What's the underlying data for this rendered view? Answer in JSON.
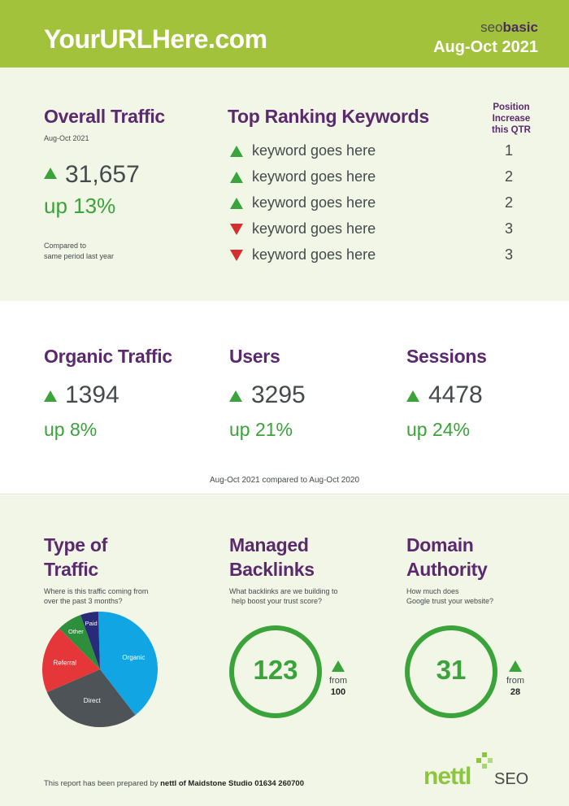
{
  "header": {
    "site_title": "YourURLHere.com",
    "brand_prefix": "seo",
    "brand_bold": "basic",
    "period": "Aug-Oct 2021"
  },
  "overall_traffic": {
    "title": "Overall Traffic",
    "date": "Aug-Oct 2021",
    "value": "31,657",
    "change": "up 13%",
    "note_line1": "Compared to",
    "note_line2": "same period last year"
  },
  "keywords": {
    "title": "Top Ranking Keywords",
    "position_header_line1": "Position",
    "position_header_line2": "Increase",
    "position_header_line3": "this QTR",
    "items": [
      {
        "text": "keyword goes here",
        "direction": "up",
        "position": "1"
      },
      {
        "text": "keyword goes here",
        "direction": "up",
        "position": "2"
      },
      {
        "text": "keyword goes here",
        "direction": "up",
        "position": "2"
      },
      {
        "text": "keyword goes here",
        "direction": "down",
        "position": "3"
      },
      {
        "text": "keyword goes here",
        "direction": "down",
        "position": "3"
      }
    ]
  },
  "metrics": {
    "organic": {
      "title": "Organic Traffic",
      "value": "1394",
      "change": "up 8%"
    },
    "users": {
      "title": "Users",
      "value": "3295",
      "change": "up 21%"
    },
    "sessions": {
      "title": "Sessions",
      "value": "4478",
      "change": "up 24%"
    },
    "comparison_note": "Aug-Oct 2021 compared to Aug-Oct 2020"
  },
  "type_of_traffic": {
    "title_line1": "Type of",
    "title_line2": "Traffic",
    "desc_line1": "Where is this traffic coming from",
    "desc_line2": "over the past 3 months?"
  },
  "backlinks": {
    "title_line1": "Managed",
    "title_line2": "Backlinks",
    "desc_line1": "What backlinks are we building to",
    "desc_line2": "help boost your trust score?",
    "value": "123",
    "from_label": "from",
    "from_value": "100"
  },
  "domain_authority": {
    "title_line1": "Domain",
    "title_line2": "Authority",
    "desc_line1": "How much does",
    "desc_line2": "Google trust your website?",
    "value": "31",
    "from_label": "from",
    "from_value": "28"
  },
  "footer": {
    "prefix": "This report has been prepared by",
    "agency": "nettl of Maidstone Studio 01634 260700",
    "logo_text": "nettl",
    "logo_suffix": "SEO"
  },
  "colors": {
    "header_green": "#a3c23c",
    "purple": "#5b2a6e",
    "up_green": "#3aa33a",
    "down_red": "#d42e2e",
    "panel_bg": "#f1f6e6"
  },
  "chart_data": {
    "type": "pie",
    "categories": [
      "Organic",
      "Direct",
      "Referral",
      "Other",
      "Paid"
    ],
    "values": [
      40,
      29,
      19,
      7,
      5
    ],
    "colors": [
      "#12a5e3",
      "#4d5356",
      "#e5373a",
      "#2d8f3c",
      "#2a2a7a"
    ]
  }
}
